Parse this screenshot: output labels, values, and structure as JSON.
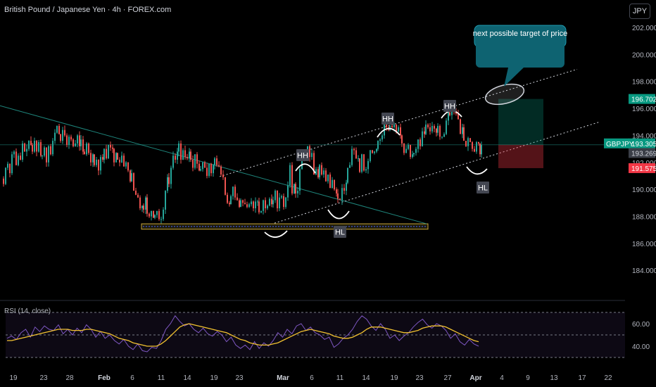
{
  "header": {
    "symbol_title": "British Pound / Japanese Yen · 4h · FOREX.com",
    "currency_button": "JPY"
  },
  "chart_data": [
    {
      "type": "candlestick",
      "title": "British Pound / Japanese Yen · 4h · FOREX.com",
      "ylim": [
        183.4,
        203.2
      ],
      "y_ticks": [
        "202.000",
        "200.000",
        "198.000",
        "196.000",
        "194.000",
        "192.000",
        "190.000",
        "188.000",
        "186.000",
        "184.000"
      ],
      "x_ticks": [
        "19",
        "23",
        "28",
        "Feb",
        "6",
        "11",
        "14",
        "19",
        "23",
        "Mar",
        "6",
        "11",
        "14",
        "19",
        "23",
        "27",
        "Apr",
        "4",
        "9",
        "13",
        "17",
        "22"
      ],
      "close_path": [
        [
          0,
          190.8
        ],
        [
          3,
          190.4
        ],
        [
          6,
          191.6
        ],
        [
          9,
          191.9
        ],
        [
          12,
          191.2
        ],
        [
          15,
          192.6
        ],
        [
          18,
          192.8
        ],
        [
          21,
          191.8
        ],
        [
          24,
          192.5
        ],
        [
          27,
          192.2
        ],
        [
          30,
          193.4
        ],
        [
          33,
          192.8
        ],
        [
          36,
          193.0
        ],
        [
          39,
          193.6
        ],
        [
          42,
          193.3
        ],
        [
          44,
          192.8
        ],
        [
          47,
          193.6
        ],
        [
          50,
          192.8
        ],
        [
          53,
          193.5
        ],
        [
          56,
          192.5
        ],
        [
          58,
          192.5
        ],
        [
          61,
          193.1
        ],
        [
          64,
          192.0
        ],
        [
          67,
          193.2
        ],
        [
          70,
          192.6
        ],
        [
          73,
          193.6
        ],
        [
          76,
          194.2
        ],
        [
          79,
          194.7
        ],
        [
          82,
          194.1
        ],
        [
          84,
          193.6
        ],
        [
          87,
          194.4
        ],
        [
          90,
          194.0
        ],
        [
          93,
          193.3
        ],
        [
          96,
          193.9
        ],
        [
          99,
          193.7
        ],
        [
          102,
          193.2
        ],
        [
          105,
          193.4
        ],
        [
          108,
          194.0
        ],
        [
          111,
          193.2
        ],
        [
          113,
          193.7
        ],
        [
          116,
          192.8
        ],
        [
          118,
          192.6
        ],
        [
          121,
          193.4
        ],
        [
          124,
          192.7
        ],
        [
          127,
          192.0
        ],
        [
          130,
          192.6
        ],
        [
          132,
          191.8
        ],
        [
          135,
          192.2
        ],
        [
          138,
          191.4
        ],
        [
          141,
          192.4
        ],
        [
          144,
          192.2
        ],
        [
          146,
          193.0
        ],
        [
          149,
          192.3
        ],
        [
          152,
          193.3
        ],
        [
          155,
          193.1
        ],
        [
          158,
          193.0
        ],
        [
          160,
          192.0
        ],
        [
          163,
          192.7
        ],
        [
          165,
          192.2
        ],
        [
          168,
          192.0
        ],
        [
          171,
          192.5
        ],
        [
          174,
          191.7
        ],
        [
          177,
          192.0
        ],
        [
          180,
          191.4
        ],
        [
          183,
          190.6
        ],
        [
          185,
          191.2
        ],
        [
          188,
          189.9
        ],
        [
          191,
          189.6
        ],
        [
          194,
          189.4
        ],
        [
          197,
          188.6
        ],
        [
          200,
          188.8
        ],
        [
          202,
          188.5
        ],
        [
          205,
          189.4
        ],
        [
          207,
          188.2
        ],
        [
          210,
          188.0
        ],
        [
          213,
          188.4
        ],
        [
          216,
          187.9
        ],
        [
          218,
          188.1
        ],
        [
          221,
          188.4
        ],
        [
          224,
          187.8
        ],
        [
          227,
          187.8
        ],
        [
          230,
          188.5
        ],
        [
          233,
          189.9
        ],
        [
          236,
          190.9
        ],
        [
          238,
          190.4
        ],
        [
          241,
          191.6
        ],
        [
          244,
          192.5
        ],
        [
          247,
          192.2
        ],
        [
          250,
          192.8
        ],
        [
          252,
          193.4
        ],
        [
          255,
          192.2
        ],
        [
          258,
          192.9
        ],
        [
          261,
          192.4
        ],
        [
          264,
          192.3
        ],
        [
          267,
          192.8
        ],
        [
          269,
          192.2
        ],
        [
          272,
          191.6
        ],
        [
          275,
          192.6
        ],
        [
          278,
          191.9
        ],
        [
          281,
          191.4
        ],
        [
          283,
          191.5
        ],
        [
          286,
          192.0
        ],
        [
          289,
          191.6
        ],
        [
          292,
          191.0
        ],
        [
          295,
          191.9
        ],
        [
          298,
          191.2
        ],
        [
          301,
          191.8
        ],
        [
          303,
          192.3
        ],
        [
          306,
          191.8
        ],
        [
          309,
          191.7
        ],
        [
          312,
          191.1
        ],
        [
          315,
          190.9
        ],
        [
          318,
          189.6
        ],
        [
          321,
          189.0
        ],
        [
          324,
          188.9
        ],
        [
          326,
          189.5
        ],
        [
          329,
          190.2
        ],
        [
          332,
          189.4
        ],
        [
          335,
          189.2
        ],
        [
          338,
          188.7
        ],
        [
          340,
          189.2
        ],
        [
          343,
          189.0
        ],
        [
          346,
          188.9
        ],
        [
          349,
          188.7
        ],
        [
          352,
          188.9
        ],
        [
          355,
          189.1
        ],
        [
          358,
          188.6
        ],
        [
          361,
          189.1
        ],
        [
          364,
          189.1
        ],
        [
          366,
          188.3
        ],
        [
          369,
          188.4
        ],
        [
          372,
          189.2
        ],
        [
          375,
          188.6
        ],
        [
          378,
          188.8
        ],
        [
          381,
          189.3
        ],
        [
          384,
          188.9
        ],
        [
          386,
          189.2
        ],
        [
          389,
          189.9
        ],
        [
          392,
          188.6
        ],
        [
          395,
          189.4
        ],
        [
          398,
          189.5
        ],
        [
          401,
          188.7
        ],
        [
          404,
          189.4
        ],
        [
          407,
          190.3
        ],
        [
          410,
          191.8
        ],
        [
          413,
          189.7
        ],
        [
          416,
          190.4
        ],
        [
          418,
          189.7
        ],
        [
          421,
          189.9
        ],
        [
          424,
          191.5
        ],
        [
          427,
          192.4
        ],
        [
          430,
          192.2
        ],
        [
          433,
          192.9
        ],
        [
          435,
          193.2
        ],
        [
          438,
          192.4
        ],
        [
          441,
          192.7
        ],
        [
          444,
          191.1
        ],
        [
          447,
          191.5
        ],
        [
          450,
          190.9
        ],
        [
          452,
          191.8
        ],
        [
          455,
          191.1
        ],
        [
          458,
          191.4
        ],
        [
          461,
          190.6
        ],
        [
          464,
          191.1
        ],
        [
          467,
          190.1
        ],
        [
          470,
          190.7
        ],
        [
          473,
          190.0
        ],
        [
          476,
          189.7
        ],
        [
          478,
          189.3
        ],
        [
          481,
          189.2
        ],
        [
          484,
          190.1
        ],
        [
          487,
          189.9
        ],
        [
          490,
          190.5
        ],
        [
          492,
          191.6
        ],
        [
          495,
          191.8
        ],
        [
          498,
          193.0
        ],
        [
          501,
          192.9
        ],
        [
          504,
          192.3
        ],
        [
          507,
          192.3
        ],
        [
          509,
          191.3
        ],
        [
          512,
          192.6
        ],
        [
          515,
          191.4
        ],
        [
          518,
          191.5
        ],
        [
          521,
          192.1
        ],
        [
          524,
          192.9
        ],
        [
          527,
          192.7
        ],
        [
          530,
          192.8
        ],
        [
          533,
          193.0
        ],
        [
          535,
          193.6
        ],
        [
          538,
          193.7
        ],
        [
          541,
          194.0
        ],
        [
          544,
          194.8
        ],
        [
          547,
          194.6
        ],
        [
          550,
          194.4
        ],
        [
          552,
          194.7
        ],
        [
          555,
          194.6
        ],
        [
          558,
          194.8
        ],
        [
          561,
          194.3
        ],
        [
          564,
          194.6
        ],
        [
          567,
          194.0
        ],
        [
          569,
          193.4
        ],
        [
          572,
          192.7
        ],
        [
          575,
          193.0
        ],
        [
          578,
          193.3
        ],
        [
          581,
          192.4
        ],
        [
          584,
          192.6
        ],
        [
          586,
          192.7
        ],
        [
          589,
          193.0
        ],
        [
          592,
          193.7
        ],
        [
          595,
          193.2
        ],
        [
          598,
          194.3
        ],
        [
          601,
          194.1
        ],
        [
          603,
          194.8
        ],
        [
          606,
          194.6
        ],
        [
          609,
          194.3
        ],
        [
          612,
          194.7
        ],
        [
          615,
          194.5
        ],
        [
          618,
          194.2
        ],
        [
          620,
          194.7
        ],
        [
          623,
          193.9
        ],
        [
          626,
          193.9
        ],
        [
          629,
          194.1
        ],
        [
          632,
          195.1
        ],
        [
          635,
          195.7
        ],
        [
          637,
          195.5
        ],
        [
          640,
          195.9
        ],
        [
          643,
          195.8
        ],
        [
          646,
          195.6
        ],
        [
          649,
          195.2
        ],
        [
          652,
          194.1
        ],
        [
          655,
          194.6
        ],
        [
          657,
          193.6
        ],
        [
          660,
          193.2
        ],
        [
          663,
          193.8
        ],
        [
          666,
          193.5
        ],
        [
          669,
          193.0
        ],
        [
          672,
          192.8
        ],
        [
          675,
          193.5
        ],
        [
          678,
          193.4
        ],
        [
          680,
          192.6
        ],
        [
          682,
          193.3
        ]
      ],
      "last_price": 193.305,
      "current_price_label": 193.269,
      "target_price": 196.702,
      "stop_price": 191.575,
      "symbol": "GBPJPY",
      "annotations": [
        "HH",
        "HH",
        "HH",
        "HL",
        "HL",
        "HL"
      ],
      "callout": "next possible target of price"
    },
    {
      "type": "line",
      "title": "RSI (14, close)",
      "ylim": [
        28,
        72
      ],
      "y_ticks": [
        "60.00",
        "40.00"
      ],
      "levels": [
        70,
        50,
        30
      ],
      "series": [
        {
          "values": [
            47,
            49,
            46,
            52,
            55,
            48,
            57,
            53,
            58,
            55,
            54,
            59,
            51,
            55,
            50,
            56,
            52,
            59,
            55,
            48,
            53,
            47,
            50,
            45,
            42,
            46,
            40,
            37,
            42,
            36,
            35,
            39,
            38,
            45,
            55,
            60,
            67,
            62,
            58,
            60,
            55,
            52,
            56,
            51,
            49,
            53,
            50,
            44,
            48,
            41,
            38,
            41,
            37,
            44,
            38,
            43,
            40,
            45,
            52,
            48,
            55,
            51,
            58,
            60,
            54,
            57,
            52,
            50,
            46,
            48,
            39,
            42,
            47,
            50,
            55,
            62,
            67,
            64,
            58,
            54,
            60,
            55,
            47,
            50,
            45,
            49,
            52,
            57,
            61,
            64,
            59,
            56,
            60,
            58,
            54,
            47,
            51,
            44,
            41,
            46,
            42,
            40
          ]
        },
        {
          "values": [
            45,
            45,
            46,
            47,
            48,
            49,
            50,
            51,
            52,
            53,
            54,
            55,
            55,
            55,
            54,
            54,
            54,
            55,
            55,
            54,
            53,
            52,
            51,
            49,
            47,
            46,
            45,
            43,
            42,
            41,
            40,
            40,
            40,
            42,
            45,
            49,
            53,
            57,
            59,
            60,
            59,
            58,
            57,
            56,
            55,
            54,
            53,
            52,
            50,
            48,
            46,
            45,
            43,
            42,
            41,
            41,
            41,
            42,
            43,
            45,
            47,
            49,
            51,
            53,
            54,
            55,
            54,
            53,
            52,
            51,
            49,
            48,
            47,
            47,
            48,
            50,
            52,
            55,
            57,
            57,
            57,
            56,
            55,
            54,
            53,
            52,
            52,
            53,
            54,
            56,
            57,
            58,
            58,
            58,
            57,
            55,
            53,
            51,
            49,
            47,
            45,
            44
          ]
        }
      ]
    }
  ]
}
